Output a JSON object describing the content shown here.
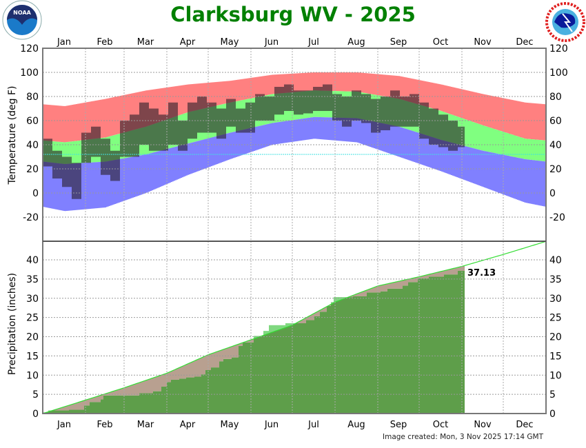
{
  "title": "Clarksburg WV - 2025",
  "footer": "Image created: Mon, 3 Nov 2025 17:14 GMT",
  "logos": {
    "left": "NOAA",
    "right": "NATIONAL WEATHER SERVICE"
  },
  "colors": {
    "title": "#008000",
    "record_high": "#ff8080",
    "normal_band": "#80ff80",
    "record_low": "#8080ff",
    "observed_temp": "rgba(40,30,40,0.6)",
    "freezing_line": "#40e0e0",
    "precip_observed": "#5e9e4a",
    "precip_below_normal": "#b8a090",
    "precip_above_normal": "#80d880",
    "precip_normal_line": "#33dd33"
  },
  "chart_data": [
    {
      "type": "bar",
      "panel": "temperature",
      "ylabel": "Temperature (deg F)",
      "ylim": [
        -40,
        120
      ],
      "yticks": [
        -20,
        0,
        20,
        40,
        60,
        80,
        100,
        120
      ],
      "months": [
        "Jan",
        "Feb",
        "Mar",
        "Apr",
        "May",
        "Jun",
        "Jul",
        "Aug",
        "Sep",
        "Oct",
        "Nov",
        "Dec"
      ],
      "grid": true,
      "freezing_line": 32,
      "normal_high_monthly": [
        42,
        46,
        55,
        67,
        75,
        82,
        85,
        84,
        78,
        68,
        56,
        45
      ],
      "normal_low_monthly": [
        24,
        26,
        32,
        41,
        50,
        58,
        63,
        62,
        55,
        44,
        35,
        28
      ],
      "record_high_monthly": [
        72,
        78,
        85,
        90,
        93,
        98,
        100,
        100,
        97,
        90,
        82,
        75
      ],
      "record_low_monthly": [
        -15,
        -12,
        0,
        15,
        28,
        40,
        45,
        42,
        30,
        18,
        5,
        -8
      ],
      "observed_weekly": [
        {
          "start": "2025-01-01",
          "high": 45,
          "low": 22
        },
        {
          "start": "2025-01-08",
          "high": 35,
          "low": 12
        },
        {
          "start": "2025-01-15",
          "high": 30,
          "low": 5
        },
        {
          "start": "2025-01-22",
          "high": 25,
          "low": -5
        },
        {
          "start": "2025-01-29",
          "high": 50,
          "low": 25
        },
        {
          "start": "2025-02-05",
          "high": 55,
          "low": 30
        },
        {
          "start": "2025-02-12",
          "high": 45,
          "low": 15
        },
        {
          "start": "2025-02-19",
          "high": 35,
          "low": 10
        },
        {
          "start": "2025-02-26",
          "high": 60,
          "low": 30
        },
        {
          "start": "2025-03-05",
          "high": 65,
          "low": 30
        },
        {
          "start": "2025-03-12",
          "high": 75,
          "low": 40
        },
        {
          "start": "2025-03-19",
          "high": 70,
          "low": 35
        },
        {
          "start": "2025-03-26",
          "high": 65,
          "low": 35
        },
        {
          "start": "2025-04-02",
          "high": 75,
          "low": 40
        },
        {
          "start": "2025-04-09",
          "high": 60,
          "low": 35
        },
        {
          "start": "2025-04-16",
          "high": 75,
          "low": 45
        },
        {
          "start": "2025-04-23",
          "high": 80,
          "low": 50
        },
        {
          "start": "2025-04-30",
          "high": 75,
          "low": 50
        },
        {
          "start": "2025-05-07",
          "high": 70,
          "low": 45
        },
        {
          "start": "2025-05-14",
          "high": 78,
          "low": 55
        },
        {
          "start": "2025-05-21",
          "high": 70,
          "low": 50
        },
        {
          "start": "2025-05-28",
          "high": 75,
          "low": 50
        },
        {
          "start": "2025-06-04",
          "high": 82,
          "low": 60
        },
        {
          "start": "2025-06-11",
          "high": 80,
          "low": 60
        },
        {
          "start": "2025-06-18",
          "high": 88,
          "low": 65
        },
        {
          "start": "2025-06-25",
          "high": 90,
          "low": 68
        },
        {
          "start": "2025-07-02",
          "high": 85,
          "low": 65
        },
        {
          "start": "2025-07-09",
          "high": 85,
          "low": 66
        },
        {
          "start": "2025-07-16",
          "high": 88,
          "low": 68
        },
        {
          "start": "2025-07-23",
          "high": 90,
          "low": 68
        },
        {
          "start": "2025-07-30",
          "high": 82,
          "low": 60
        },
        {
          "start": "2025-08-06",
          "high": 80,
          "low": 55
        },
        {
          "start": "2025-08-13",
          "high": 85,
          "low": 60
        },
        {
          "start": "2025-08-20",
          "high": 82,
          "low": 58
        },
        {
          "start": "2025-08-27",
          "high": 78,
          "low": 50
        },
        {
          "start": "2025-09-03",
          "high": 80,
          "low": 52
        },
        {
          "start": "2025-09-10",
          "high": 85,
          "low": 55
        },
        {
          "start": "2025-09-17",
          "high": 80,
          "low": 55
        },
        {
          "start": "2025-09-24",
          "high": 82,
          "low": 55
        },
        {
          "start": "2025-10-01",
          "high": 75,
          "low": 45
        },
        {
          "start": "2025-10-08",
          "high": 70,
          "low": 40
        },
        {
          "start": "2025-10-15",
          "high": 65,
          "low": 38
        },
        {
          "start": "2025-10-22",
          "high": 60,
          "low": 35
        },
        {
          "start": "2025-10-29",
          "high": 55,
          "low": 38
        }
      ],
      "observed_end": "2025-11-02"
    },
    {
      "type": "area",
      "panel": "precipitation",
      "ylabel": "Precipitation (inches)",
      "ylim": [
        0,
        44.8
      ],
      "yticks": [
        0,
        5,
        10,
        15,
        20,
        25,
        30,
        35,
        40
      ],
      "grid": true,
      "normal_cumulative_month_start": [
        0,
        3.5,
        6.7,
        10.5,
        15.3,
        19.2,
        23.0,
        29.0,
        33.2,
        35.6,
        38.3,
        41.4,
        44.8
      ],
      "observed_cumulative_steps": [
        [
          "2025-01-01",
          0.3
        ],
        [
          "2025-01-05",
          0.8
        ],
        [
          "2025-01-20",
          1.0
        ],
        [
          "2025-01-31",
          2.1
        ],
        [
          "2025-02-04",
          3.0
        ],
        [
          "2025-02-12",
          3.7
        ],
        [
          "2025-02-14",
          4.7
        ],
        [
          "2025-03-12",
          5.3
        ],
        [
          "2025-03-22",
          5.8
        ],
        [
          "2025-03-28",
          7.0
        ],
        [
          "2025-04-01",
          8.2
        ],
        [
          "2025-04-04",
          8.8
        ],
        [
          "2025-04-10",
          9.1
        ],
        [
          "2025-04-15",
          9.4
        ],
        [
          "2025-04-21",
          9.6
        ],
        [
          "2025-04-26",
          10.2
        ],
        [
          "2025-04-29",
          11.3
        ],
        [
          "2025-05-03",
          12.0
        ],
        [
          "2025-05-09",
          13.6
        ],
        [
          "2025-05-12",
          14.2
        ],
        [
          "2025-05-18",
          14.6
        ],
        [
          "2025-05-23",
          17.6
        ],
        [
          "2025-05-26",
          18.5
        ],
        [
          "2025-06-03",
          20.2
        ],
        [
          "2025-06-10",
          21.5
        ],
        [
          "2025-06-14",
          23.0
        ],
        [
          "2025-06-26",
          23.5
        ],
        [
          "2025-07-11",
          24.3
        ],
        [
          "2025-07-17",
          25.3
        ],
        [
          "2025-07-21",
          26.5
        ],
        [
          "2025-07-26",
          28.0
        ],
        [
          "2025-07-29",
          29.0
        ],
        [
          "2025-07-31",
          30.3
        ],
        [
          "2025-08-14",
          30.5
        ],
        [
          "2025-08-24",
          31.5
        ],
        [
          "2025-09-03",
          31.8
        ],
        [
          "2025-09-08",
          32.5
        ],
        [
          "2025-09-19",
          33.3
        ],
        [
          "2025-09-23",
          34.2
        ],
        [
          "2025-09-30",
          35.2
        ],
        [
          "2025-10-08",
          35.6
        ],
        [
          "2025-10-19",
          36.2
        ],
        [
          "2025-10-29",
          37.13
        ]
      ],
      "observed_end": "2025-11-02",
      "total_label": "37.13"
    }
  ]
}
